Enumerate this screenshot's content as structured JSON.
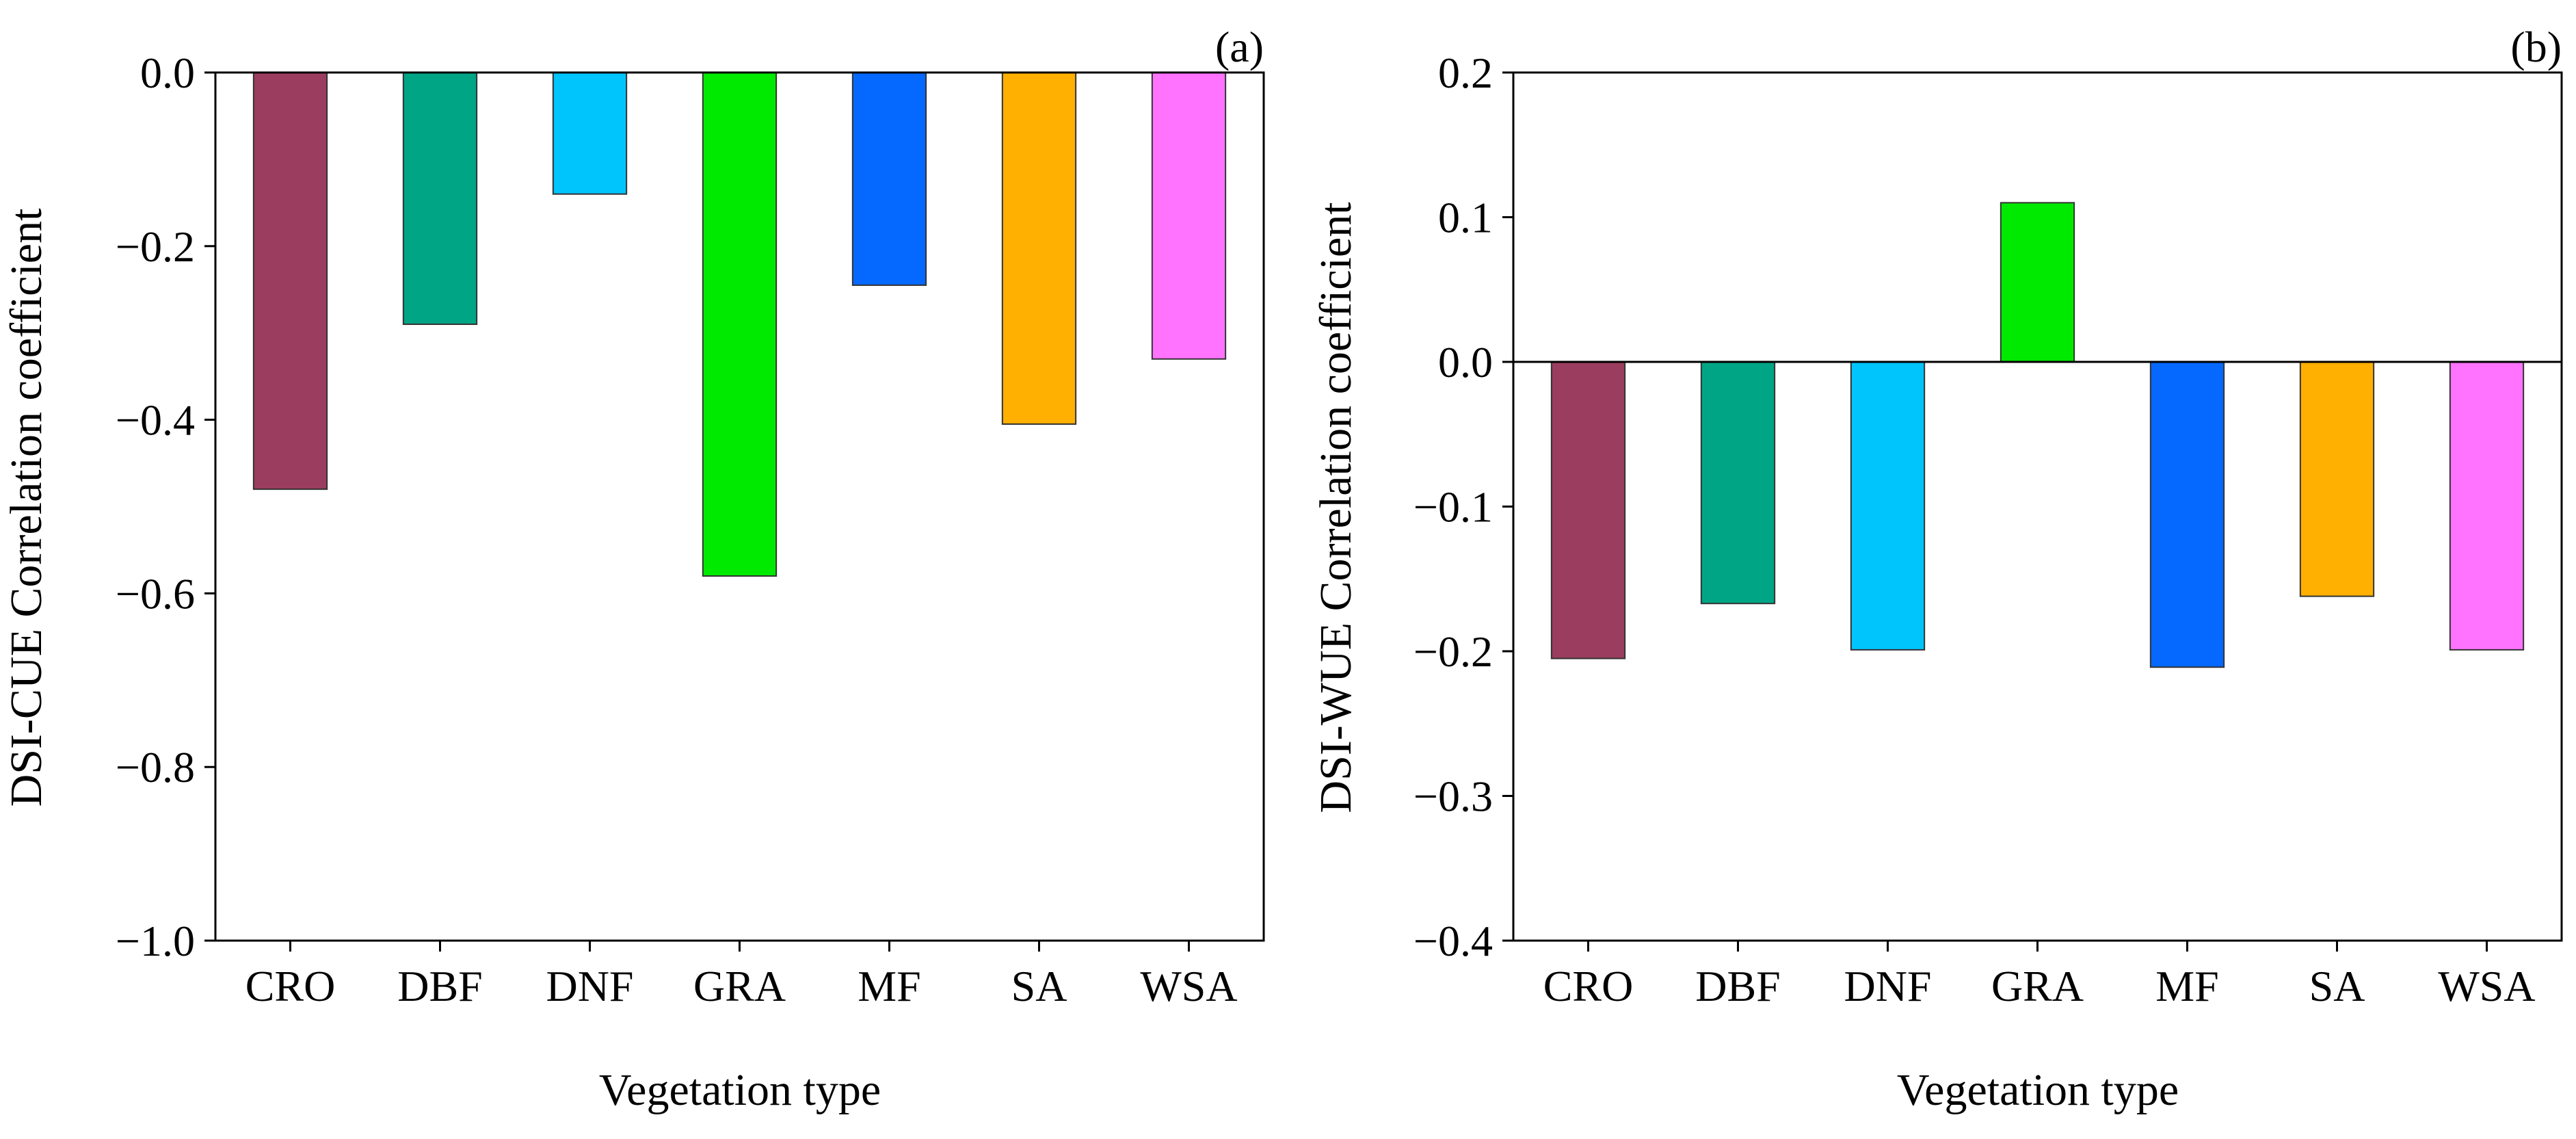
{
  "figure_title": "",
  "chart_data": [
    {
      "type": "bar",
      "panel_label": "(a)",
      "title": "",
      "xlabel": "Vegetation type",
      "ylabel": "DSI-CUE Correlation coefficient",
      "categories": [
        "CRO",
        "DBF",
        "DNF",
        "GRA",
        "MF",
        "SA",
        "WSA"
      ],
      "values": [
        -0.48,
        -0.29,
        -0.14,
        -0.58,
        -0.245,
        -0.405,
        -0.33
      ],
      "colors": [
        "#9b3d5f",
        "#00a585",
        "#00c5fd",
        "#00ea00",
        "#0569ff",
        "#ffb000",
        "#ff73ff"
      ],
      "ylim": [
        -1.0,
        0.0
      ],
      "yticks": [
        0.0,
        -0.2,
        -0.4,
        -0.6,
        -0.8,
        -1.0
      ],
      "ytick_labels": [
        "0.0",
        "−0.2",
        "−0.4",
        "−0.6",
        "−0.8",
        "−1.0"
      ],
      "grid": false,
      "legend": "none"
    },
    {
      "type": "bar",
      "panel_label": "(b)",
      "title": "",
      "xlabel": "Vegetation type",
      "ylabel": "DSI-WUE Correlation coefficient",
      "categories": [
        "CRO",
        "DBF",
        "DNF",
        "GRA",
        "MF",
        "SA",
        "WSA"
      ],
      "values": [
        -0.205,
        -0.167,
        -0.199,
        0.11,
        -0.211,
        -0.162,
        -0.199
      ],
      "colors": [
        "#9b3d5f",
        "#00a585",
        "#00c5fd",
        "#00ea00",
        "#0569ff",
        "#ffb000",
        "#ff73ff"
      ],
      "ylim": [
        -0.4,
        0.2
      ],
      "yticks": [
        0.2,
        0.1,
        0.0,
        -0.1,
        -0.2,
        -0.3,
        -0.4
      ],
      "ytick_labels": [
        "0.2",
        "0.1",
        "0.0",
        "−0.1",
        "−0.2",
        "−0.3",
        "−0.4"
      ],
      "zero_line": true,
      "grid": false,
      "legend": "none"
    }
  ]
}
